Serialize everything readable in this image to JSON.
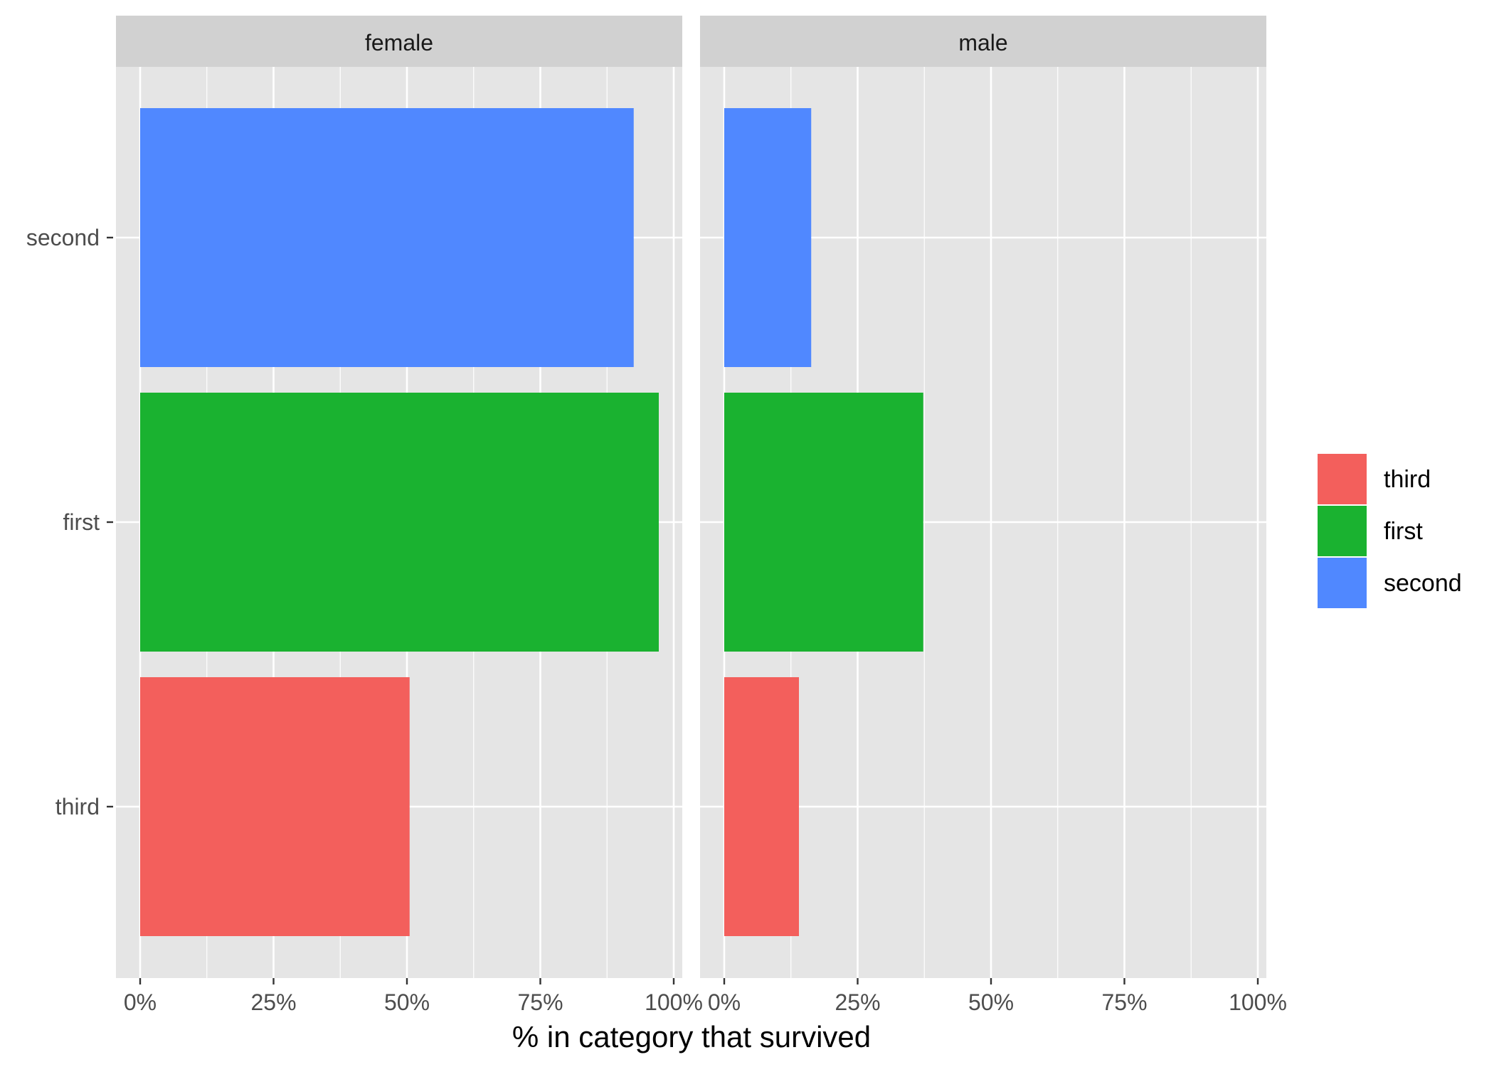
{
  "chart_data": {
    "type": "bar",
    "orientation": "horizontal",
    "title": "",
    "xlabel": "% in category that survived",
    "ylabel": "",
    "xlim": [
      0,
      1
    ],
    "x_ticks": [
      0,
      0.25,
      0.5,
      0.75,
      1
    ],
    "x_tick_labels": [
      "0%",
      "25%",
      "50%",
      "75%",
      "100%"
    ],
    "categories": [
      "second",
      "first",
      "third"
    ],
    "facets": [
      {
        "label": "female",
        "values": {
          "second": 0.925,
          "first": 0.972,
          "third": 0.505
        }
      },
      {
        "label": "male",
        "values": {
          "second": 0.163,
          "first": 0.373,
          "third": 0.14
        }
      }
    ],
    "legend": {
      "position": "right",
      "entries": [
        {
          "label": "third",
          "color": "#F35F5C"
        },
        {
          "label": "first",
          "color": "#1AB230"
        },
        {
          "label": "second",
          "color": "#5088FF"
        }
      ]
    },
    "colors": {
      "third": "#F35F5C",
      "first": "#1AB230",
      "second": "#5088FF"
    },
    "grid": true,
    "panel_background": "#E5E5E5",
    "strip_background": "#D1D1D1"
  }
}
